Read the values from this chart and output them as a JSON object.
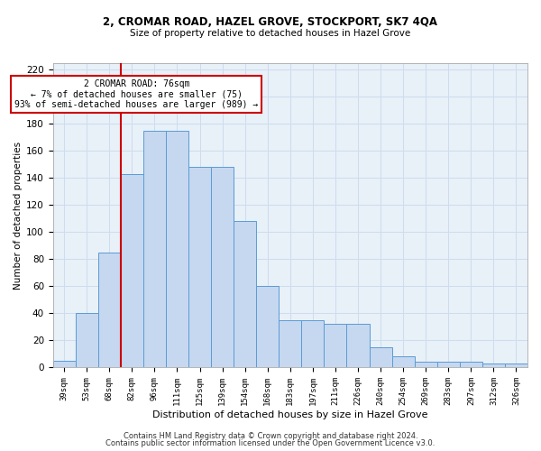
{
  "title1": "2, CROMAR ROAD, HAZEL GROVE, STOCKPORT, SK7 4QA",
  "title2": "Size of property relative to detached houses in Hazel Grove",
  "xlabel": "Distribution of detached houses by size in Hazel Grove",
  "ylabel": "Number of detached properties",
  "categories": [
    "39sqm",
    "53sqm",
    "68sqm",
    "82sqm",
    "96sqm",
    "111sqm",
    "125sqm",
    "139sqm",
    "154sqm",
    "168sqm",
    "183sqm",
    "197sqm",
    "211sqm",
    "226sqm",
    "240sqm",
    "254sqm",
    "269sqm",
    "283sqm",
    "297sqm",
    "312sqm",
    "326sqm"
  ],
  "values": [
    5,
    40,
    85,
    143,
    175,
    175,
    148,
    148,
    108,
    60,
    35,
    35,
    32,
    32,
    15,
    8,
    4,
    4,
    4,
    3,
    3
  ],
  "bar_color": "#c5d8f0",
  "bar_edge_color": "#5b9bd5",
  "red_line_x": 2.5,
  "annotation_title": "2 CROMAR ROAD: 76sqm",
  "annotation_line1": "← 7% of detached houses are smaller (75)",
  "annotation_line2": "93% of semi-detached houses are larger (989) →",
  "annotation_box_color": "#ffffff",
  "annotation_box_edge": "#cc0000",
  "red_line_color": "#cc0000",
  "footer1": "Contains HM Land Registry data © Crown copyright and database right 2024.",
  "footer2": "Contains public sector information licensed under the Open Government Licence v3.0.",
  "ylim": [
    0,
    225
  ],
  "yticks": [
    0,
    20,
    40,
    60,
    80,
    100,
    120,
    140,
    160,
    180,
    200,
    220
  ],
  "grid_color": "#cddcee",
  "background_color": "#e8f0f8"
}
